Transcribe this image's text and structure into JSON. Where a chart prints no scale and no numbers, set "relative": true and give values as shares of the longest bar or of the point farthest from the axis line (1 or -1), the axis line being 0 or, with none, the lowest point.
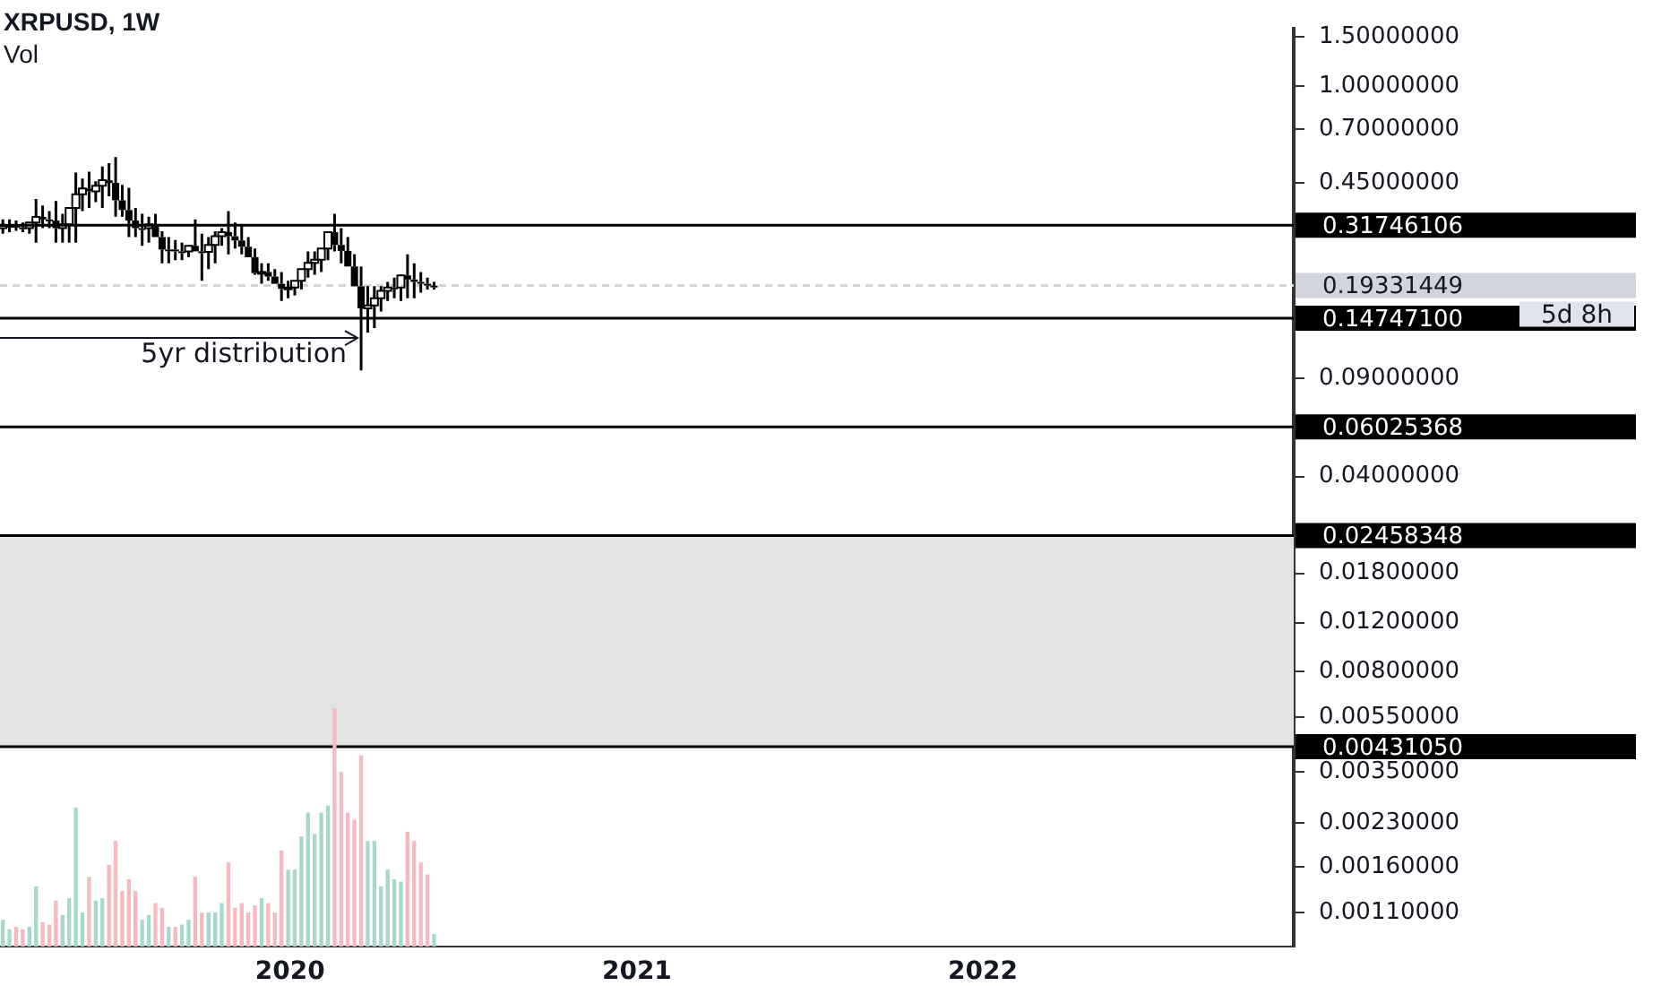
{
  "chart_data": [
    {
      "type": "candlestick",
      "title": "XRPUSD, 1W",
      "color": "#000000",
      "log": true,
      "x": [
        "2019-03-04",
        "2019-03-11",
        "2019-03-18",
        "2019-03-25",
        "2019-04-01",
        "2019-04-08",
        "2019-04-15",
        "2019-04-22",
        "2019-04-29",
        "2019-05-06",
        "2019-05-13",
        "2019-05-20",
        "2019-05-27",
        "2019-06-03",
        "2019-06-10",
        "2019-06-17",
        "2019-06-24",
        "2019-07-01",
        "2019-07-08",
        "2019-07-15",
        "2019-07-22",
        "2019-07-29",
        "2019-08-05",
        "2019-08-12",
        "2019-08-19",
        "2019-08-26",
        "2019-09-02",
        "2019-09-09",
        "2019-09-16",
        "2019-09-23",
        "2019-09-30",
        "2019-10-07",
        "2019-10-14",
        "2019-10-21",
        "2019-10-28",
        "2019-11-04",
        "2019-11-11",
        "2019-11-18",
        "2019-11-25",
        "2019-12-02",
        "2019-12-09",
        "2019-12-16",
        "2019-12-23",
        "2019-12-30",
        "2020-01-06",
        "2020-01-13",
        "2020-01-20",
        "2020-01-27",
        "2020-02-03",
        "2020-02-10",
        "2020-02-17",
        "2020-02-24",
        "2020-03-02",
        "2020-03-09",
        "2020-03-16",
        "2020-03-23",
        "2020-03-30",
        "2020-04-06",
        "2020-04-13",
        "2020-04-20",
        "2020-04-27",
        "2020-05-04",
        "2020-05-11",
        "2020-05-18",
        "2020-05-25",
        "2020-06-01"
      ],
      "ohlc": [
        [
          0.31,
          0.333,
          0.296,
          0.316
        ],
        [
          0.316,
          0.333,
          0.3,
          0.316
        ],
        [
          0.316,
          0.33,
          0.303,
          0.312
        ],
        [
          0.312,
          0.325,
          0.3,
          0.31
        ],
        [
          0.31,
          0.325,
          0.296,
          0.325
        ],
        [
          0.325,
          0.394,
          0.275,
          0.34
        ],
        [
          0.34,
          0.374,
          0.31,
          0.333
        ],
        [
          0.333,
          0.357,
          0.31,
          0.33
        ],
        [
          0.33,
          0.388,
          0.275,
          0.31
        ],
        [
          0.31,
          0.349,
          0.275,
          0.32
        ],
        [
          0.32,
          0.366,
          0.275,
          0.366
        ],
        [
          0.366,
          0.49,
          0.275,
          0.41
        ],
        [
          0.41,
          0.466,
          0.357,
          0.43
        ],
        [
          0.43,
          0.494,
          0.366,
          0.42
        ],
        [
          0.42,
          0.456,
          0.384,
          0.44
        ],
        [
          0.44,
          0.515,
          0.366,
          0.46
        ],
        [
          0.46,
          0.53,
          0.403,
          0.45
        ],
        [
          0.45,
          0.557,
          0.341,
          0.39
        ],
        [
          0.39,
          0.443,
          0.341,
          0.36
        ],
        [
          0.36,
          0.432,
          0.288,
          0.33
        ],
        [
          0.33,
          0.366,
          0.288,
          0.31
        ],
        [
          0.31,
          0.349,
          0.268,
          0.31
        ],
        [
          0.31,
          0.341,
          0.275,
          0.32
        ],
        [
          0.32,
          0.349,
          0.288,
          0.288
        ],
        [
          0.288,
          0.302,
          0.232,
          0.26
        ],
        [
          0.26,
          0.288,
          0.232,
          0.26
        ],
        [
          0.26,
          0.281,
          0.238,
          0.256
        ],
        [
          0.256,
          0.275,
          0.238,
          0.256
        ],
        [
          0.256,
          0.268,
          0.244,
          0.268
        ],
        [
          0.268,
          0.333,
          0.256,
          0.256
        ],
        [
          0.256,
          0.296,
          0.201,
          0.255
        ],
        [
          0.255,
          0.288,
          0.221,
          0.27
        ],
        [
          0.27,
          0.302,
          0.232,
          0.29
        ],
        [
          0.29,
          0.31,
          0.268,
          0.3
        ],
        [
          0.3,
          0.357,
          0.25,
          0.29
        ],
        [
          0.29,
          0.325,
          0.262,
          0.28
        ],
        [
          0.28,
          0.317,
          0.25,
          0.266
        ],
        [
          0.266,
          0.288,
          0.244,
          0.244
        ],
        [
          0.244,
          0.262,
          0.211,
          0.214
        ],
        [
          0.214,
          0.232,
          0.196,
          0.216
        ],
        [
          0.216,
          0.232,
          0.201,
          0.208
        ],
        [
          0.208,
          0.221,
          0.196,
          0.196
        ],
        [
          0.196,
          0.216,
          0.17,
          0.188
        ],
        [
          0.188,
          0.201,
          0.174,
          0.19
        ],
        [
          0.19,
          0.201,
          0.178,
          0.201
        ],
        [
          0.201,
          0.221,
          0.187,
          0.221
        ],
        [
          0.221,
          0.256,
          0.206,
          0.233
        ],
        [
          0.233,
          0.256,
          0.211,
          0.239
        ],
        [
          0.239,
          0.262,
          0.216,
          0.262
        ],
        [
          0.262,
          0.3,
          0.238,
          0.3
        ],
        [
          0.3,
          0.349,
          0.256,
          0.27
        ],
        [
          0.27,
          0.31,
          0.232,
          0.257
        ],
        [
          0.257,
          0.288,
          0.226,
          0.226
        ],
        [
          0.226,
          0.25,
          0.192,
          0.192
        ],
        [
          0.192,
          0.226,
          0.096,
          0.16
        ],
        [
          0.16,
          0.192,
          0.131,
          0.164
        ],
        [
          0.164,
          0.192,
          0.136,
          0.174
        ],
        [
          0.174,
          0.192,
          0.156,
          0.185
        ],
        [
          0.185,
          0.199,
          0.17,
          0.19
        ],
        [
          0.19,
          0.206,
          0.174,
          0.19
        ],
        [
          0.19,
          0.211,
          0.17,
          0.21
        ],
        [
          0.21,
          0.25,
          0.174,
          0.203
        ],
        [
          0.203,
          0.232,
          0.174,
          0.199
        ],
        [
          0.199,
          0.216,
          0.182,
          0.196
        ],
        [
          0.196,
          0.206,
          0.187,
          0.193
        ],
        [
          0.193,
          0.199,
          0.187,
          0.193
        ]
      ],
      "xlim": [
        "2019-03-01",
        "2022-11-25"
      ],
      "xticks": [
        "2020",
        "2021",
        "2022"
      ],
      "ylim": [
        0.00083,
        1.61
      ],
      "yticks": [
        {
          "value": 1.5,
          "label": "1.50000000"
        },
        {
          "value": 1.0,
          "label": "1.00000000"
        },
        {
          "value": 0.7,
          "label": "0.70000000"
        },
        {
          "value": 0.45,
          "label": "0.45000000"
        },
        {
          "value": 0.09,
          "label": "0.09000000"
        },
        {
          "value": 0.04,
          "label": "0.04000000"
        },
        {
          "value": 0.018,
          "label": "0.01800000"
        },
        {
          "value": 0.012,
          "label": "0.01200000"
        },
        {
          "value": 0.008,
          "label": "0.00800000"
        },
        {
          "value": 0.0055,
          "label": "0.00550000"
        },
        {
          "value": 0.0035,
          "label": "0.00350000"
        },
        {
          "value": 0.0023,
          "label": "0.00230000"
        },
        {
          "value": 0.0016,
          "label": "0.00160000"
        },
        {
          "value": 0.0011,
          "label": "0.00110000"
        }
      ],
      "ref_lines": [
        {
          "axis": "y",
          "value": 0.31746106,
          "label": "0.31746106",
          "color": "#000000"
        },
        {
          "axis": "y",
          "value": 0.19331449,
          "label": "0.19331449",
          "color": "#d1d4dc",
          "line_style": "dashed"
        },
        {
          "axis": "y",
          "value": 0.147471,
          "label": "0.14747100",
          "color": "#000000"
        },
        {
          "axis": "y",
          "value": 0.06025368,
          "label": "0.06025368",
          "color": "#000000"
        },
        {
          "axis": "y",
          "value": 0.02458348,
          "label": "0.02458348",
          "color": "#000000"
        },
        {
          "axis": "y",
          "value": 0.0043105,
          "label": "0.00431050",
          "color": "#000000"
        }
      ],
      "bands": [
        {
          "axis": "y",
          "from": 0.0043105,
          "to": 0.02458348,
          "color": "#e3e3e3"
        }
      ],
      "annotations": [
        "5yr distribution",
        "5d 8h"
      ]
    },
    {
      "type": "bar",
      "title": "Vol",
      "relative": true,
      "x": [
        "2019-03-04",
        "2019-03-11",
        "2019-03-18",
        "2019-03-25",
        "2019-04-01",
        "2019-04-08",
        "2019-04-15",
        "2019-04-22",
        "2019-04-29",
        "2019-05-06",
        "2019-05-13",
        "2019-05-20",
        "2019-05-27",
        "2019-06-03",
        "2019-06-10",
        "2019-06-17",
        "2019-06-24",
        "2019-07-01",
        "2019-07-08",
        "2019-07-15",
        "2019-07-22",
        "2019-07-29",
        "2019-08-05",
        "2019-08-12",
        "2019-08-19",
        "2019-08-26",
        "2019-09-02",
        "2019-09-09",
        "2019-09-16",
        "2019-09-23",
        "2019-09-30",
        "2019-10-07",
        "2019-10-14",
        "2019-10-21",
        "2019-10-28",
        "2019-11-04",
        "2019-11-11",
        "2019-11-18",
        "2019-11-25",
        "2019-12-02",
        "2019-12-09",
        "2019-12-16",
        "2019-12-23",
        "2019-12-30",
        "2020-01-06",
        "2020-01-13",
        "2020-01-20",
        "2020-01-27",
        "2020-02-03",
        "2020-02-10",
        "2020-02-17",
        "2020-02-24",
        "2020-03-02",
        "2020-03-09",
        "2020-03-16",
        "2020-03-23",
        "2020-03-30",
        "2020-04-06",
        "2020-04-13",
        "2020-04-20",
        "2020-04-27",
        "2020-05-04",
        "2020-05-11",
        "2020-05-18",
        "2020-05-25",
        "2020-06-01"
      ],
      "xlim": [
        "2019-03-01",
        "2022-11-25"
      ],
      "values": [
        0.11,
        0.07,
        0.08,
        0.07,
        0.08,
        0.25,
        0.1,
        0.09,
        0.19,
        0.13,
        0.2,
        0.58,
        0.14,
        0.29,
        0.19,
        0.2,
        0.34,
        0.44,
        0.23,
        0.28,
        0.23,
        0.11,
        0.13,
        0.18,
        0.16,
        0.08,
        0.08,
        0.09,
        0.11,
        0.29,
        0.14,
        0.14,
        0.14,
        0.18,
        0.35,
        0.16,
        0.18,
        0.14,
        0.17,
        0.2,
        0.18,
        0.14,
        0.4,
        0.32,
        0.32,
        0.46,
        0.56,
        0.47,
        0.56,
        0.59,
        1,
        0.73,
        0.56,
        0.53,
        0.8,
        0.44,
        0.44,
        0.25,
        0.32,
        0.28,
        0.27,
        0.48,
        0.44,
        0.35,
        0.3,
        0.05
      ],
      "colors": [
        "#a8d8cc",
        "#a8d8cc",
        "#f7b8c0",
        "#f7b8c0",
        "#a8d8cc",
        "#a8d8cc",
        "#f7b8c0",
        "#f7b8c0",
        "#f7b8c0",
        "#a8d8cc",
        "#a8d8cc",
        "#a8d8cc",
        "#a8d8cc",
        "#f7b8c0",
        "#a8d8cc",
        "#a8d8cc",
        "#f7b8c0",
        "#f7b8c0",
        "#f7b8c0",
        "#f7b8c0",
        "#f7b8c0",
        "#a8d8cc",
        "#a8d8cc",
        "#f7b8c0",
        "#f7b8c0",
        "#a8d8cc",
        "#f7b8c0",
        "#a8d8cc",
        "#a8d8cc",
        "#f7b8c0",
        "#f7b8c0",
        "#a8d8cc",
        "#a8d8cc",
        "#a8d8cc",
        "#f7b8c0",
        "#f7b8c0",
        "#f7b8c0",
        "#f7b8c0",
        "#f7b8c0",
        "#a8d8cc",
        "#f7b8c0",
        "#f7b8c0",
        "#f7b8c0",
        "#a8d8cc",
        "#a8d8cc",
        "#a8d8cc",
        "#a8d8cc",
        "#a8d8cc",
        "#a8d8cc",
        "#a8d8cc",
        "#f7b8c0",
        "#f7b8c0",
        "#f7b8c0",
        "#f7b8c0",
        "#f7b8c0",
        "#a8d8cc",
        "#a8d8cc",
        "#a8d8cc",
        "#a8d8cc",
        "#a8d8cc",
        "#a8d8cc",
        "#f7b8c0",
        "#f7b8c0",
        "#f7b8c0",
        "#f7b8c0",
        "#a8d8cc"
      ]
    }
  ]
}
